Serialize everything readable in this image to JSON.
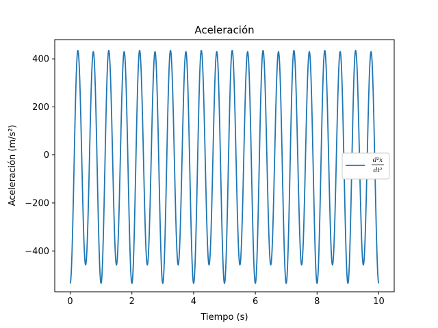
{
  "chart_data": {
    "type": "line",
    "title": "Aceleración",
    "xlabel": "Tiempo (s)",
    "ylabel": "Aceleración (m/s²)",
    "xlim": [
      -0.5,
      10.5
    ],
    "ylim": [
      -570,
      480
    ],
    "xticks": [
      0,
      2,
      4,
      6,
      8,
      10
    ],
    "yticks": [
      -400,
      -200,
      0,
      200,
      400
    ],
    "xtick_labels": [
      "0",
      "2",
      "4",
      "6",
      "8",
      "10"
    ],
    "ytick_labels": [
      "−400",
      "−200",
      "0",
      "200",
      "400"
    ],
    "grid": false,
    "legend_position": "center-right",
    "series": [
      {
        "name": "d²x/dt²",
        "color": "#1f77b4",
        "x": [
          0,
          0.25,
          0.5,
          0.75,
          1.0,
          1.25,
          1.5,
          1.75,
          2.0,
          2.25,
          2.5,
          2.75,
          3.0,
          3.25,
          3.5,
          3.75,
          4.0,
          4.25,
          4.5,
          4.75,
          5.0,
          5.25,
          5.5,
          5.75,
          6.0,
          6.25,
          6.5,
          6.75,
          7.0,
          7.25,
          7.5,
          7.75,
          8.0,
          8.25,
          8.5,
          8.75,
          9.0,
          9.25,
          9.5,
          9.75,
          10.0
        ],
        "values": [
          -535,
          435,
          -458,
          430,
          -535,
          435,
          -458,
          430,
          -535,
          435,
          -458,
          430,
          -535,
          435,
          -458,
          430,
          -535,
          435,
          -458,
          430,
          -535,
          435,
          -458,
          430,
          -535,
          435,
          -458,
          430,
          -535,
          435,
          -458,
          430,
          -535,
          435,
          -458,
          430,
          -535,
          435,
          -458,
          430,
          -535
        ]
      }
    ],
    "legend": {
      "numerator": "d²x",
      "denominator": "dt²"
    }
  }
}
